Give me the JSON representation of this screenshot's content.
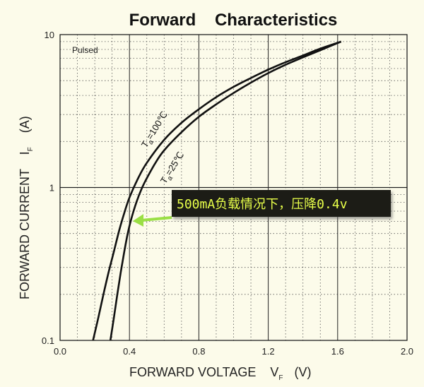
{
  "chart_data": {
    "type": "line",
    "title": "Forward    Characteristics",
    "xlabel": "FORWARD VOLTAGE    V",
    "xlabel_sub": "F",
    "xlabel_unit": "(V)",
    "ylabel": "FORWARD CURRENT    I",
    "ylabel_sub": "F",
    "ylabel_unit": "(A)",
    "xlim": [
      0,
      2.0
    ],
    "ylim": [
      0.1,
      10
    ],
    "yscale": "log",
    "grid": true,
    "x_ticks": [
      "0.0",
      "0.4",
      "0.8",
      "1.2",
      "1.6",
      "2.0"
    ],
    "y_ticks": [
      "10",
      "1",
      "0.1"
    ],
    "note": "Pulsed",
    "series": [
      {
        "name": "Ta=100℃",
        "x": [
          0.19,
          0.22,
          0.25,
          0.28,
          0.31,
          0.34,
          0.37,
          0.4,
          0.45,
          0.5,
          0.6,
          0.7,
          0.8,
          0.9,
          1.0,
          1.1,
          1.2,
          1.3,
          1.4,
          1.5,
          1.62
        ],
        "y": [
          0.1,
          0.14,
          0.2,
          0.28,
          0.38,
          0.52,
          0.68,
          0.86,
          1.15,
          1.45,
          2.05,
          2.65,
          3.25,
          3.9,
          4.55,
          5.2,
          5.9,
          6.6,
          7.3,
          8.1,
          9.0
        ]
      },
      {
        "name": "Ta=25℃",
        "x": [
          0.29,
          0.31,
          0.33,
          0.35,
          0.37,
          0.39,
          0.41,
          0.44,
          0.47,
          0.5,
          0.55,
          0.6,
          0.7,
          0.8,
          0.9,
          1.0,
          1.1,
          1.2,
          1.3,
          1.4,
          1.5,
          1.62
        ],
        "y": [
          0.1,
          0.14,
          0.2,
          0.28,
          0.38,
          0.5,
          0.62,
          0.8,
          0.98,
          1.15,
          1.45,
          1.75,
          2.3,
          2.9,
          3.5,
          4.15,
          4.85,
          5.6,
          6.35,
          7.1,
          7.9,
          9.0
        ]
      }
    ],
    "series_labels": {
      "t100": {
        "main": "T",
        "sub": "a",
        "rest": "=100℃"
      },
      "t25": {
        "main": "T",
        "sub": "a",
        "rest": "=25℃"
      }
    },
    "annotation": {
      "text": "500mA负载情况下，压降0.4v",
      "point": {
        "x": 0.41,
        "y": 0.6
      },
      "box_color": "#1a1f14",
      "text_color": "#e8ff4a",
      "arrow_color": "#9adf45"
    }
  }
}
